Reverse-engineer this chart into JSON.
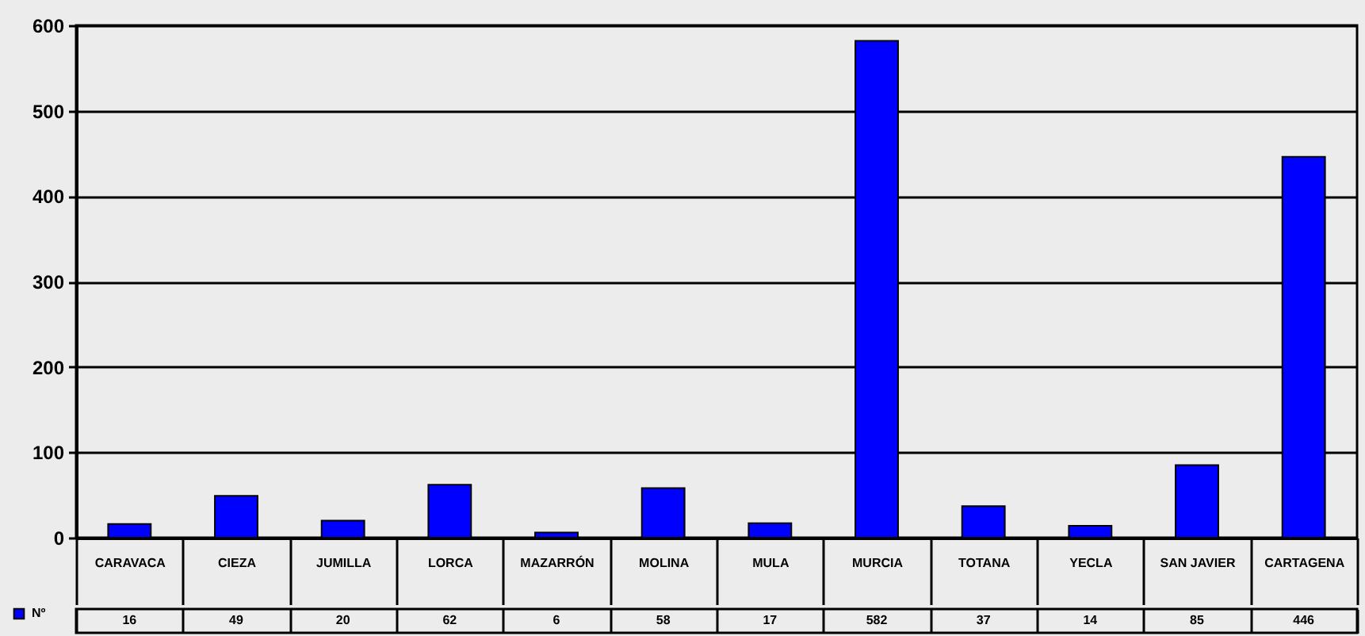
{
  "chart_data": {
    "type": "bar",
    "categories": [
      "CARAVACA",
      "CIEZA",
      "JUMILLA",
      "LORCA",
      "MAZARRÓN",
      "MOLINA",
      "MULA",
      "MURCIA",
      "TOTANA",
      "YECLA",
      "SAN JAVIER",
      "CARTAGENA"
    ],
    "series": [
      {
        "name": "Nº",
        "color": "#0000ff",
        "values": [
          16,
          49,
          20,
          62,
          6,
          58,
          17,
          582,
          37,
          14,
          85,
          446
        ]
      }
    ],
    "ylim": [
      0,
      600
    ],
    "yticks": [
      0,
      100,
      200,
      300,
      400,
      500,
      600
    ],
    "grid": "y",
    "legend": "bottom left",
    "data_labels": true
  }
}
